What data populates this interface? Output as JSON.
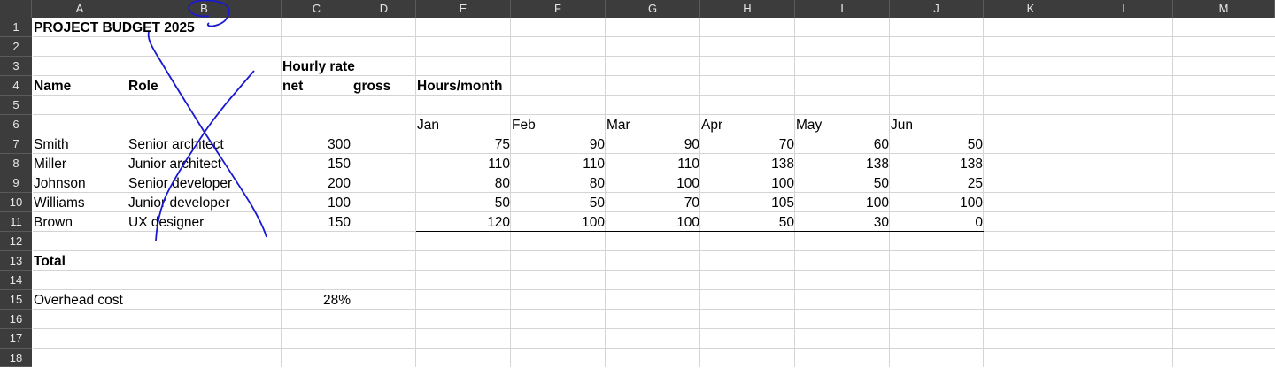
{
  "columns": [
    "A",
    "B",
    "C",
    "D",
    "E",
    "F",
    "G",
    "H",
    "I",
    "J",
    "K",
    "L",
    "M"
  ],
  "rows": [
    "1",
    "2",
    "3",
    "4",
    "5",
    "6",
    "7",
    "8",
    "9",
    "10",
    "11",
    "12",
    "13",
    "14",
    "15",
    "16",
    "17",
    "18"
  ],
  "title": "PROJECT BUDGET 2025",
  "headers": {
    "hourly_rate": "Hourly rate",
    "name": "Name",
    "role": "Role",
    "net": "net",
    "gross": "gross",
    "hours_month": "Hours/month"
  },
  "months": [
    "Jan",
    "Feb",
    "Mar",
    "Apr",
    "May",
    "Jun"
  ],
  "people": [
    {
      "name": "Smith",
      "role": "Senior architect",
      "rate": "300",
      "hours": [
        "75",
        "90",
        "90",
        "70",
        "60",
        "50"
      ]
    },
    {
      "name": "Miller",
      "role": "Junior architect",
      "rate": "150",
      "hours": [
        "110",
        "110",
        "110",
        "138",
        "138",
        "138"
      ]
    },
    {
      "name": "Johnson",
      "role": "Senior developer",
      "rate": "200",
      "hours": [
        "80",
        "80",
        "100",
        "100",
        "50",
        "25"
      ]
    },
    {
      "name": "Williams",
      "role": "Junior developer",
      "rate": "100",
      "hours": [
        "50",
        "50",
        "70",
        "105",
        "100",
        "100"
      ]
    },
    {
      "name": "Brown",
      "role": "UX designer",
      "rate": "150",
      "hours": [
        "120",
        "100",
        "100",
        "50",
        "30",
        "0"
      ]
    }
  ],
  "total_label": "Total",
  "overhead_label": "Overhead cost",
  "overhead_value": "28%",
  "colors": {
    "header_bg": "#3c3c3c",
    "grid": "#d4d4d4",
    "ink": "#1a1ad0"
  }
}
